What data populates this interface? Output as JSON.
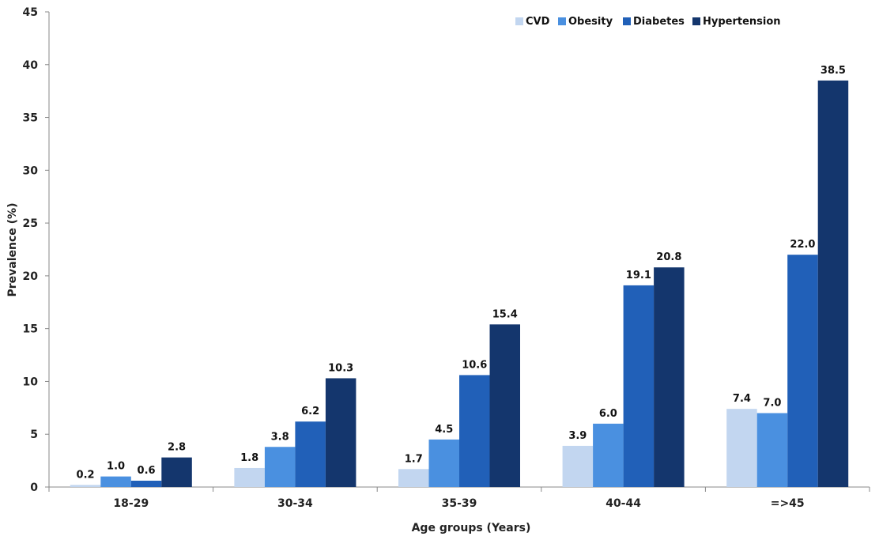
{
  "chart_data": {
    "type": "bar",
    "xlabel": "Age groups (Years)",
    "ylabel": "Prevalence (%)",
    "ylim": [
      0,
      45
    ],
    "yticks": [
      0,
      5,
      10,
      15,
      20,
      25,
      30,
      35,
      40,
      45
    ],
    "grid": false,
    "legend_position": "top-right",
    "categories": [
      "18-29",
      "30-34",
      "35-39",
      "40-44",
      "=>45"
    ],
    "series": [
      {
        "name": "CVD",
        "color": "#c2d6f0",
        "values": [
          0.2,
          1.8,
          1.7,
          3.9,
          7.4
        ],
        "labels": [
          "0.2",
          "1.8",
          "1.7",
          "3.9",
          "7.4"
        ]
      },
      {
        "name": "Obesity",
        "color": "#4a90e0",
        "values": [
          1.0,
          3.8,
          4.5,
          6.0,
          7.0
        ],
        "labels": [
          "1.0",
          "3.8",
          "4.5",
          "6.0",
          "7.0"
        ]
      },
      {
        "name": "Diabetes",
        "color": "#2160b8",
        "values": [
          0.6,
          6.2,
          10.6,
          19.1,
          22.0
        ],
        "labels": [
          "0.6",
          "6.2",
          "10.6",
          "19.1",
          "22.0"
        ]
      },
      {
        "name": "Hypertension",
        "color": "#14366d",
        "values": [
          2.8,
          10.3,
          15.4,
          20.8,
          38.5
        ],
        "labels": [
          "2.8",
          "10.3",
          "15.4",
          "20.8",
          "38.5"
        ]
      }
    ]
  }
}
